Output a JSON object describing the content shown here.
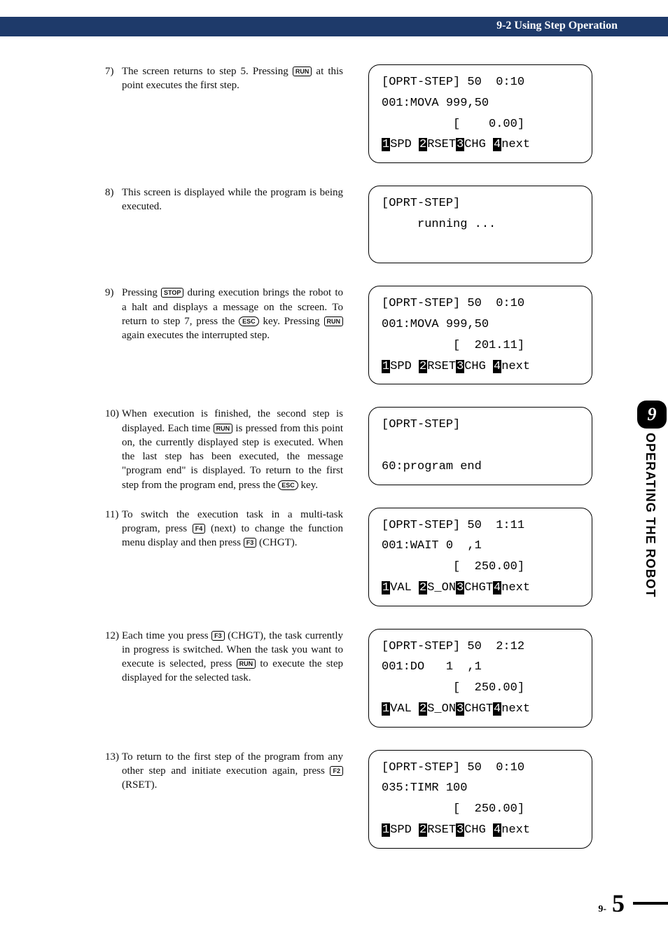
{
  "header": {
    "title": "9-2 Using Step Operation"
  },
  "keys": {
    "run": "RUN",
    "stop": "STOP",
    "esc": "ESC",
    "f2": "F2",
    "f3": "F3",
    "f4": "F4"
  },
  "steps": {
    "s7": {
      "num": "7)",
      "t1": "The screen returns to step 5. Pressing ",
      "t2": " at this point executes the first step."
    },
    "s8": {
      "num": "8)",
      "t1": "This screen is displayed while the program is being executed."
    },
    "s9": {
      "num": "9)",
      "t1": "Pressing ",
      "t2": " during execution brings the robot to a halt and displays a message on the screen. To return to step 7, press the ",
      "t3": " key. Pressing ",
      "t4": " again executes the interrupted step."
    },
    "s10": {
      "num": "10)",
      "t1": "When execution is finished, the second step is displayed. Each time ",
      "t2": " is pressed from this point on, the currently displayed step is executed. When the last step has been executed, the message \"program end\" is displayed. To return to the first step from the program end, press the ",
      "t3": " key."
    },
    "s11": {
      "num": "11)",
      "t1": "To switch the execution task in a multi-task program, press ",
      "t2": " (next) to change the function menu display and then press ",
      "t3": " (CHGT)."
    },
    "s12": {
      "num": "12)",
      "t1": "Each time you press ",
      "t2": " (CHGT), the task currently in progress is switched. When the task you want to execute is selected, press ",
      "t3": " to execute the step displayed for the selected task."
    },
    "s13": {
      "num": "13)",
      "t1": "To return to the first step of the program from any other step and initiate execution again, press ",
      "t2": " (RSET)."
    }
  },
  "screens": {
    "sc7": {
      "l1": "[OPRT-STEP] 50  0:10",
      "l2": "001:MOVA 999,50",
      "l3": "          [    0.00]",
      "fA": "1",
      "fAlabel": "SPD ",
      "fB": "2",
      "fBlabel": "RSET",
      "fC": "3",
      "fClabel": "CHG ",
      "fD": "4",
      "fDlabel": "next"
    },
    "sc8": {
      "l1": "[OPRT-STEP]",
      "l2": "     running ..."
    },
    "sc9": {
      "l1": "[OPRT-STEP] 50  0:10",
      "l2": "001:MOVA 999,50",
      "l3": "          [  201.11]",
      "fA": "1",
      "fAlabel": "SPD ",
      "fB": "2",
      "fBlabel": "RSET",
      "fC": "3",
      "fClabel": "CHG ",
      "fD": "4",
      "fDlabel": "next"
    },
    "sc10": {
      "l1": "[OPRT-STEP]",
      "l2": "",
      "l3": "60:program end"
    },
    "sc11": {
      "l1": "[OPRT-STEP] 50  1:11",
      "l2": "001:WAIT 0  ,1",
      "l3": "          [  250.00]",
      "fA": "1",
      "fAlabel": "VAL ",
      "fB": "2",
      "fBlabel": "S_ON",
      "fC": "3",
      "fClabel": "CHGT",
      "fD": "4",
      "fDlabel": "next"
    },
    "sc12": {
      "l1": "[OPRT-STEP] 50  2:12",
      "l2": "001:DO   1  ,1",
      "l3": "          [  250.00]",
      "fA": "1",
      "fAlabel": "VAL ",
      "fB": "2",
      "fBlabel": "S_ON",
      "fC": "3",
      "fClabel": "CHGT",
      "fD": "4",
      "fDlabel": "next"
    },
    "sc13": {
      "l1": "[OPRT-STEP] 50  0:10",
      "l2": "035:TIMR 100",
      "l3": "          [  250.00]",
      "fA": "1",
      "fAlabel": "SPD ",
      "fB": "2",
      "fBlabel": "RSET",
      "fC": "3",
      "fClabel": "CHG ",
      "fD": "4",
      "fDlabel": "next"
    }
  },
  "side": {
    "chapter": "9",
    "label": "OPERATING THE ROBOT"
  },
  "footer": {
    "prefix": "9-",
    "num": "5"
  },
  "colors": {
    "header_bg": "#1e3a6a",
    "text": "#000000",
    "inverse_bg": "#000000",
    "inverse_fg": "#ffffff",
    "page_bg": "#ffffff"
  }
}
